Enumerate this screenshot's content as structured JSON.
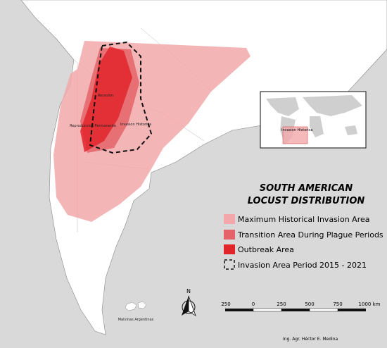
{
  "title": [
    "SOUTH AMERICAN",
    "LOCUST DISTRIBUTION"
  ],
  "legend": [
    "Maximum Historical Invasion Area",
    "Transition Area During Plague Periods",
    "Outbreak Area",
    "Invasion Area Period 2015 - 2021"
  ],
  "map_labels": {
    "recession": "Recesion",
    "reproduction": "Reproduccion Permanente",
    "invasion": "Invasion Historica",
    "malvinas": "Malvinas Argentinas"
  },
  "inset_label": "Invasion Historica",
  "north": "N",
  "scale": [
    "250",
    "0",
    "250",
    "500",
    "750",
    "1000 km"
  ],
  "credit": "Ing. Agr. Héctor E. Medina"
}
